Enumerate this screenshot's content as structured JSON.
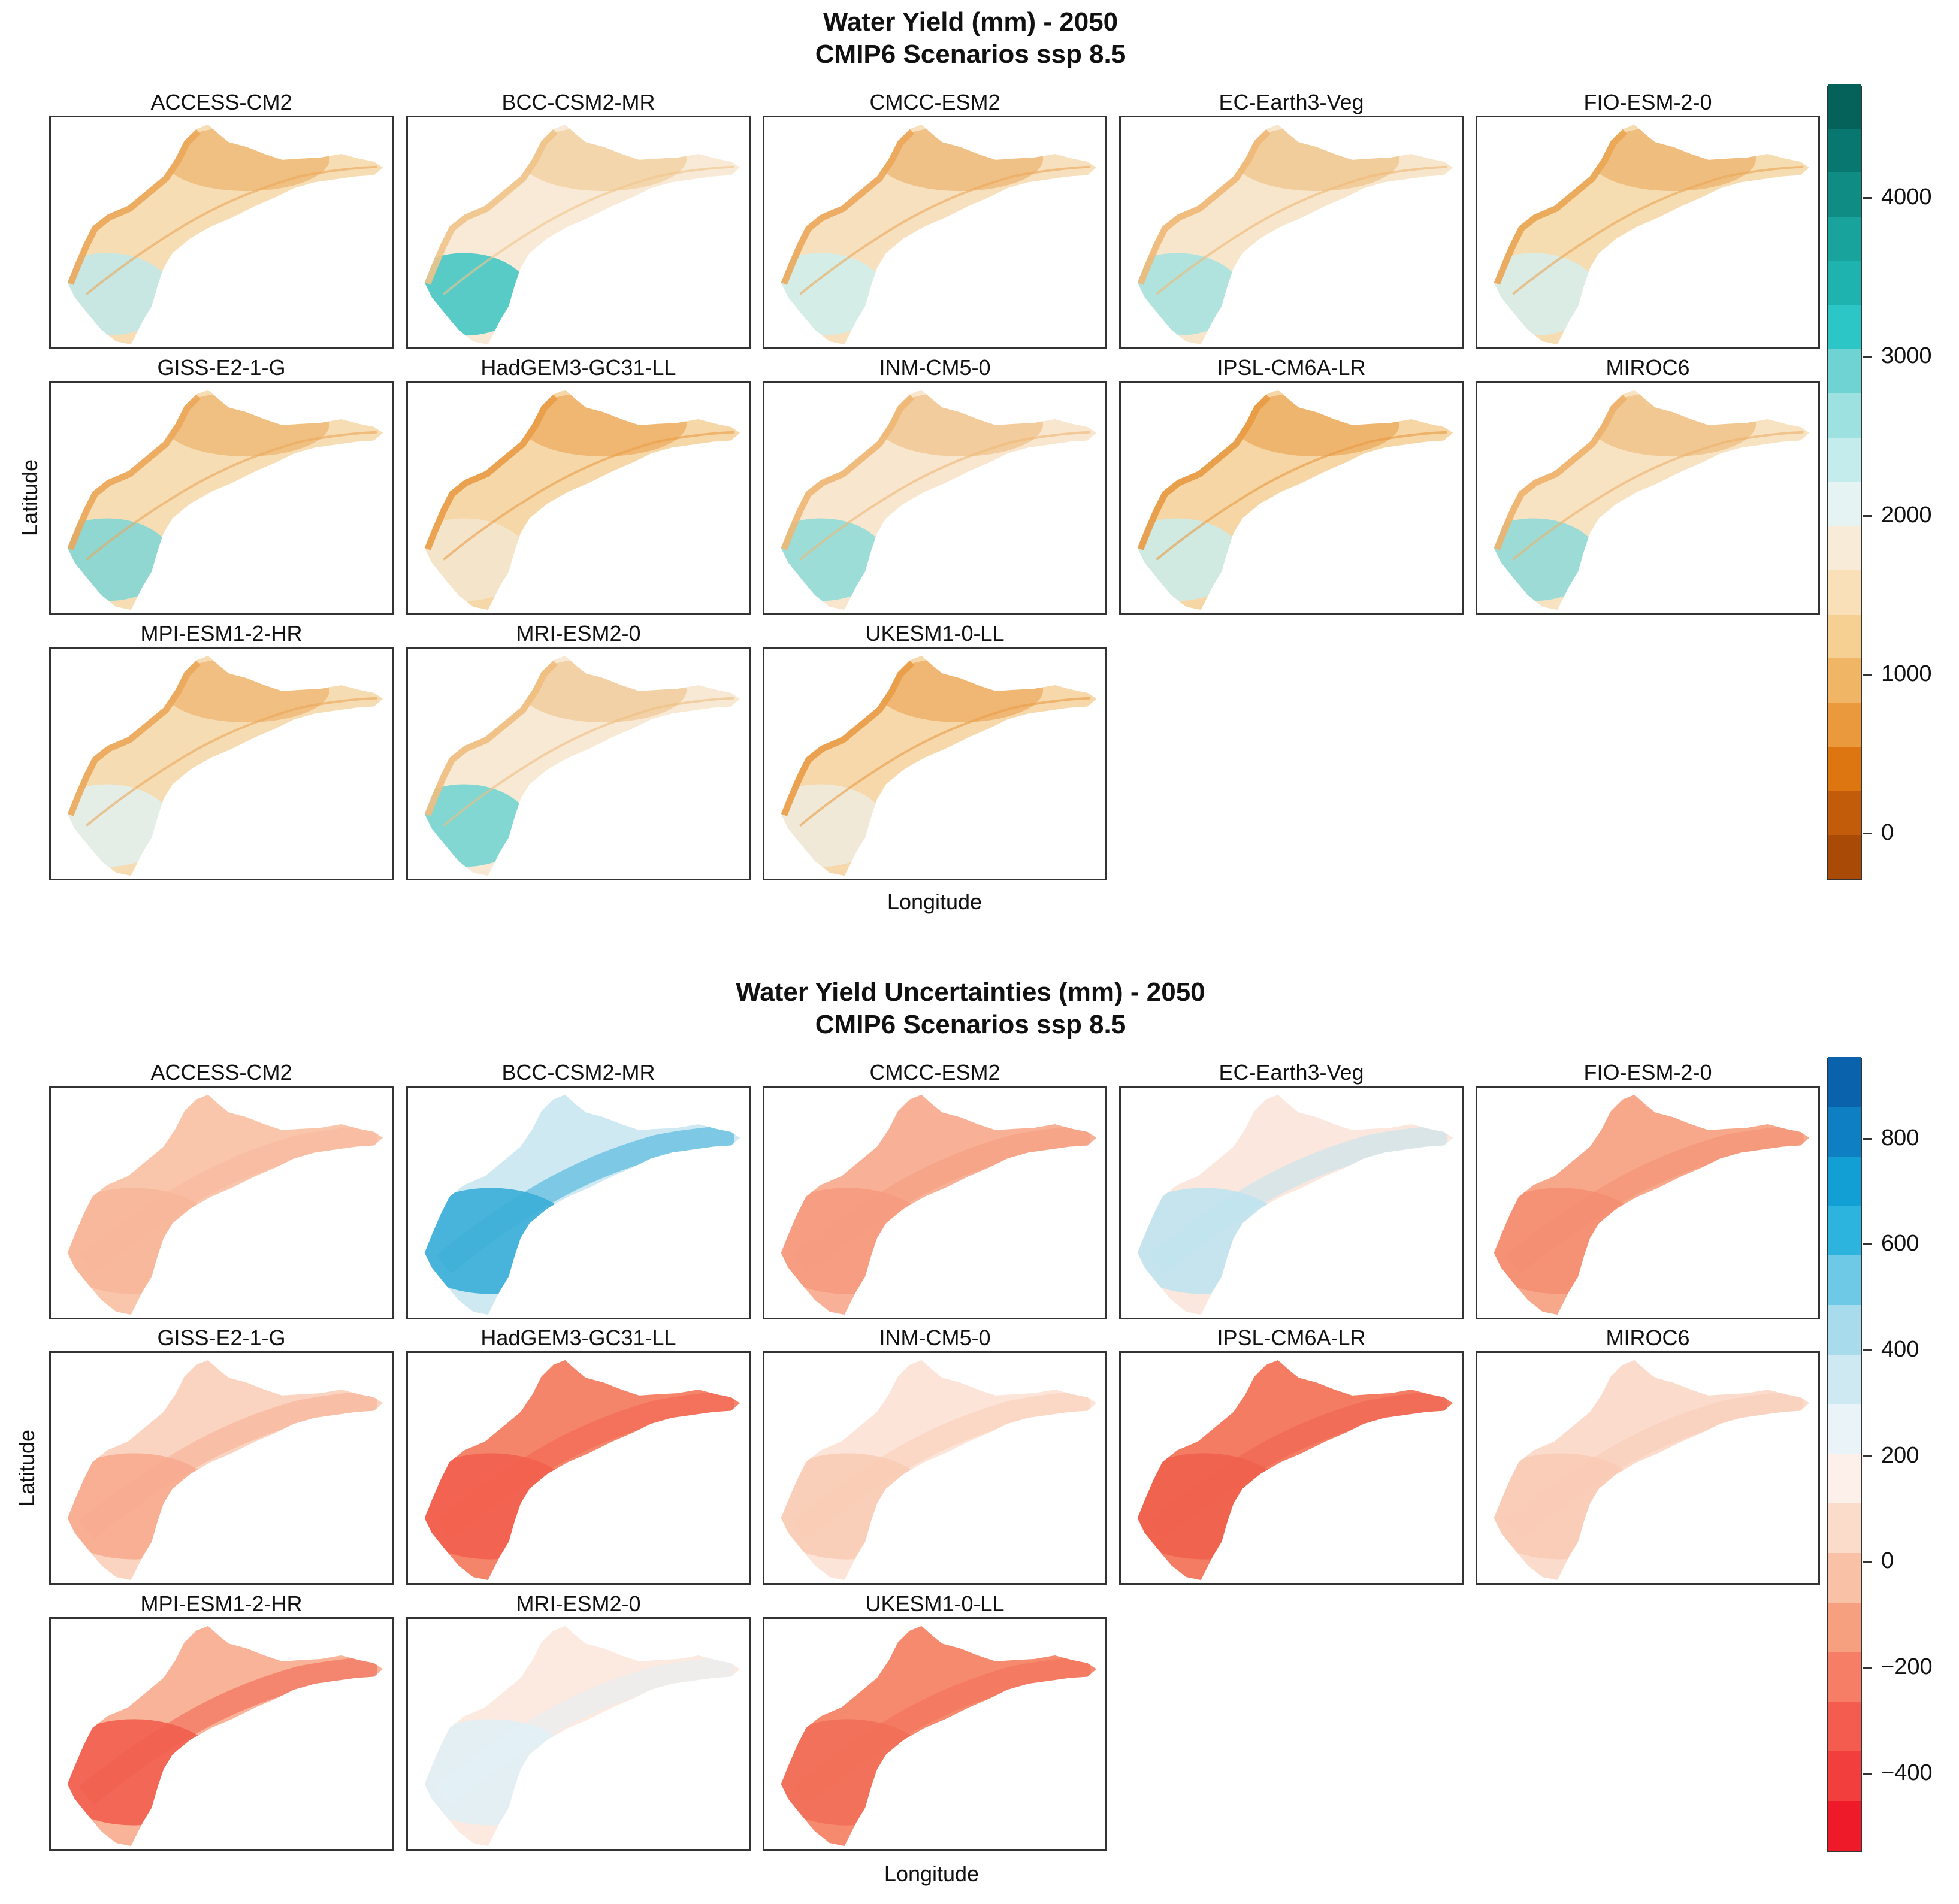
{
  "top": {
    "title_line1": "Water Yield (mm) - 2050",
    "title_line2": "CMIP6 Scenarios ssp 8.5",
    "ylabel": "Latitude",
    "xlabel": "Longitude",
    "colorbar": {
      "ticks": [
        "4000",
        "3000",
        "2000",
        "1000",
        "0"
      ],
      "tick_values": [
        4000,
        3000,
        2000,
        1000,
        0
      ],
      "range": [
        -300,
        4700
      ],
      "colors": [
        "#a94b06",
        "#c35c0a",
        "#dd7511",
        "#ea9a3c",
        "#f0b565",
        "#f6cf92",
        "#f9e0b8",
        "#f8ecd9",
        "#e6f3f3",
        "#c5ecec",
        "#9ee1e1",
        "#6fd3d3",
        "#2cc6c6",
        "#1fb3b0",
        "#18a39d",
        "#0f8d85",
        "#08776f",
        "#05625a"
      ]
    },
    "panels": [
      {
        "name": "ACCESS-CM2",
        "fill": "#f6ddb4",
        "dry": "#eba75a",
        "wet": "#bfe8ea"
      },
      {
        "name": "BCC-CSM2-MR",
        "fill": "#f8ead6",
        "dry": "#f0c48a",
        "wet": "#3cc5c4"
      },
      {
        "name": "CMCC-ESM2",
        "fill": "#f7e0bd",
        "dry": "#eba75a",
        "wet": "#cfeeee"
      },
      {
        "name": "EC-Earth3-Veg",
        "fill": "#f7e6cb",
        "dry": "#eeb877",
        "wet": "#a5e2e2"
      },
      {
        "name": "FIO-ESM-2-0",
        "fill": "#f6dcb1",
        "dry": "#eaa553",
        "wet": "#d6efee"
      },
      {
        "name": "GISS-E2-1-G",
        "fill": "#f6ddb4",
        "dry": "#eba75a",
        "wet": "#7fd6d6"
      },
      {
        "name": "HadGEM3-GC31-LL",
        "fill": "#f6d7a8",
        "dry": "#e99c46",
        "wet": "#f3e6cf"
      },
      {
        "name": "INM-CM5-0",
        "fill": "#f8e6cf",
        "dry": "#eeb774",
        "wet": "#8ddad9"
      },
      {
        "name": "IPSL-CM6A-LR",
        "fill": "#f6d6a4",
        "dry": "#e89a42",
        "wet": "#c9ecec"
      },
      {
        "name": "MIROC6",
        "fill": "#f7e2c2",
        "dry": "#edb16b",
        "wet": "#8ddad9"
      },
      {
        "name": "MPI-ESM1-2-HR",
        "fill": "#f6dcb2",
        "dry": "#eba75a",
        "wet": "#e0f1f0"
      },
      {
        "name": "MRI-ESM2-0",
        "fill": "#f8e9d4",
        "dry": "#efbe80",
        "wet": "#6fd3d2"
      },
      {
        "name": "UKESM1-0-LL",
        "fill": "#f6d8aa",
        "dry": "#e99c46",
        "wet": "#f0ece0"
      }
    ]
  },
  "bottom": {
    "title_line1": "Water Yield Uncertainties (mm) - 2050",
    "title_line2": "CMIP6 Scenarios ssp 8.5",
    "ylabel": "Latitude",
    "xlabel": "Longitude",
    "colorbar": {
      "ticks": [
        "800",
        "600",
        "400",
        "200",
        "0",
        "−200",
        "−400"
      ],
      "tick_values": [
        800,
        600,
        400,
        200,
        0,
        -200,
        -400
      ],
      "range": [
        -550,
        950
      ],
      "colors": [
        "#ee1a2a",
        "#f33e3e",
        "#f45c4f",
        "#f67e66",
        "#f7a080",
        "#f9c1a6",
        "#fbdccb",
        "#fdf0ea",
        "#eaf4f8",
        "#cfe9f2",
        "#a8dced",
        "#6ec9e6",
        "#2db4de",
        "#129fd3",
        "#0e7fc2",
        "#0a62ad"
      ]
    },
    "panels": [
      {
        "name": "ACCESS-CM2",
        "fill": "#f9c6ac",
        "core": "#f7b69a"
      },
      {
        "name": "BCC-CSM2-MR",
        "fill": "#cfe9f3",
        "core": "#3aaed8"
      },
      {
        "name": "CMCC-ESM2",
        "fill": "#f8b196",
        "core": "#f59b80"
      },
      {
        "name": "EC-Earth3-Veg",
        "fill": "#fbe7dd",
        "core": "#bfe3f0"
      },
      {
        "name": "FIO-ESM-2-0",
        "fill": "#f7a88a",
        "core": "#f48e72"
      },
      {
        "name": "GISS-E2-1-G",
        "fill": "#fad4c0",
        "core": "#f7ab8f"
      },
      {
        "name": "HadGEM3-GC31-LL",
        "fill": "#f5856a",
        "core": "#f2604f"
      },
      {
        "name": "INM-CM5-0",
        "fill": "#fce4d8",
        "core": "#f9ccb6"
      },
      {
        "name": "IPSL-CM6A-LR",
        "fill": "#f37c62",
        "core": "#f0604e"
      },
      {
        "name": "MIROC6",
        "fill": "#fbdccc",
        "core": "#f9cbb6"
      },
      {
        "name": "MPI-ESM1-2-HR",
        "fill": "#f8b398",
        "core": "#f15e4e"
      },
      {
        "name": "MRI-ESM2-0",
        "fill": "#fce9e0",
        "core": "#e1f0f6"
      },
      {
        "name": "UKESM1-0-LL",
        "fill": "#f58a6e",
        "core": "#f26e58"
      }
    ]
  }
}
